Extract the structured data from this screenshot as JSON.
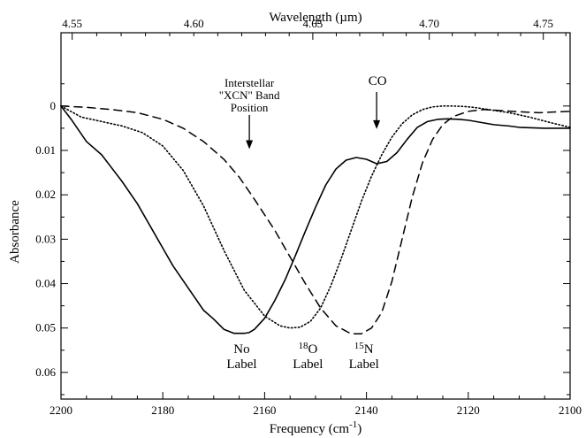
{
  "chart_data": {
    "type": "line",
    "xlabel": "Frequency (cm",
    "xlabel_sup": "-1",
    "xlabel_close": ")",
    "ylabel": "Absorbance",
    "x2label": "Wavelength (µm)",
    "xlim": [
      2200,
      2100
    ],
    "ylim": [
      0.066,
      -0.0165
    ],
    "y_inverted": true,
    "x_ticks": [
      {
        "value": 2200,
        "label": "2200"
      },
      {
        "value": 2180,
        "label": "2180"
      },
      {
        "value": 2160,
        "label": "2160"
      },
      {
        "value": 2140,
        "label": "2140"
      },
      {
        "value": 2120,
        "label": "2120"
      },
      {
        "value": 2100,
        "label": "2100"
      }
    ],
    "y_ticks": [
      {
        "value": 0,
        "label": "0"
      },
      {
        "value": 0.01,
        "label": "0.01"
      },
      {
        "value": 0.02,
        "label": "0.02"
      },
      {
        "value": 0.03,
        "label": "0.03"
      },
      {
        "value": 0.04,
        "label": "0.04"
      },
      {
        "value": 0.05,
        "label": "0.05"
      },
      {
        "value": 0.06,
        "label": "0.06"
      }
    ],
    "x2_ticks": [
      {
        "wavelength": 4.55,
        "label": "4.55"
      },
      {
        "wavelength": 4.6,
        "label": "4.60"
      },
      {
        "wavelength": 4.65,
        "label": "4.65"
      },
      {
        "wavelength": 4.7,
        "label": "4.70"
      },
      {
        "wavelength": 4.75,
        "label": "4.75"
      }
    ],
    "grid": false,
    "series": [
      {
        "style": "solid",
        "x": [
          2200,
          2198,
          2195,
          2192,
          2190,
          2188,
          2185,
          2182,
          2180,
          2178,
          2175,
          2172,
          2170,
          2168,
          2166,
          2164,
          2163,
          2162,
          2160,
          2158,
          2156,
          2154,
          2152,
          2150,
          2148,
          2146,
          2144,
          2142,
          2140,
          2138,
          2136,
          2134,
          2132,
          2130,
          2128,
          2126,
          2124,
          2122,
          2120,
          2118,
          2115,
          2112,
          2110,
          2105,
          2100
        ],
        "y": [
          0.0,
          0.003,
          0.008,
          0.011,
          0.014,
          0.017,
          0.022,
          0.028,
          0.032,
          0.036,
          0.041,
          0.046,
          0.048,
          0.0503,
          0.0512,
          0.0512,
          0.051,
          0.0503,
          0.0478,
          0.0438,
          0.0392,
          0.0338,
          0.0282,
          0.0228,
          0.0178,
          0.0142,
          0.0122,
          0.0116,
          0.012,
          0.013,
          0.0125,
          0.0105,
          0.0075,
          0.0048,
          0.0035,
          0.003,
          0.0029,
          0.003,
          0.0032,
          0.0036,
          0.0042,
          0.0045,
          0.0048,
          0.005,
          0.005
        ]
      },
      {
        "style": "dotted",
        "x": [
          2200,
          2196,
          2192,
          2188,
          2184,
          2180,
          2176,
          2172,
          2168,
          2164,
          2160,
          2157,
          2155,
          2153,
          2151,
          2149,
          2147,
          2145,
          2143,
          2141,
          2139,
          2137,
          2135,
          2133,
          2131,
          2129,
          2127,
          2125,
          2123,
          2121,
          2119,
          2116,
          2112,
          2108,
          2104,
          2100
        ],
        "y": [
          0.0,
          0.0025,
          0.0035,
          0.0045,
          0.006,
          0.009,
          0.0145,
          0.0225,
          0.0325,
          0.0415,
          0.0473,
          0.0495,
          0.05,
          0.0498,
          0.0485,
          0.0455,
          0.0405,
          0.0345,
          0.028,
          0.0215,
          0.0158,
          0.011,
          0.007,
          0.004,
          0.002,
          0.0008,
          0.0002,
          0.0,
          0.0,
          0.0001,
          0.0003,
          0.0008,
          0.0015,
          0.0025,
          0.0037,
          0.0048
        ]
      },
      {
        "style": "dashed",
        "x": [
          2200,
          2195,
          2190,
          2185,
          2180,
          2176,
          2172,
          2168,
          2165,
          2162,
          2158,
          2155,
          2152,
          2149,
          2146,
          2143,
          2141,
          2139,
          2137,
          2135,
          2133,
          2131,
          2129,
          2127,
          2125,
          2123,
          2120,
          2117,
          2114,
          2110,
          2106,
          2102,
          2100
        ],
        "y": [
          0.0,
          0.0003,
          0.0008,
          0.0015,
          0.003,
          0.005,
          0.008,
          0.012,
          0.016,
          0.021,
          0.028,
          0.034,
          0.04,
          0.0455,
          0.0495,
          0.0513,
          0.0513,
          0.05,
          0.0465,
          0.0395,
          0.03,
          0.0205,
          0.0128,
          0.0075,
          0.0042,
          0.0024,
          0.0012,
          0.0008,
          0.001,
          0.0013,
          0.0015,
          0.0013,
          0.0012
        ]
      }
    ],
    "annotations": [
      {
        "id": "xcn",
        "lines": [
          "Interstellar",
          "\"XCN\" Band",
          "Position"
        ],
        "x": 2163,
        "arrow_tip_y": 0.0097
      },
      {
        "id": "co",
        "text": "CO",
        "x": 2138,
        "arrow_tip_y": 0.0052
      },
      {
        "id": "no-label",
        "lines": [
          "No",
          "Label"
        ],
        "x": 2164.5
      },
      {
        "id": "o18-label",
        "sup": "18",
        "base": "O",
        "line2": "Label",
        "x": 2151.5
      },
      {
        "id": "n15-label",
        "sup": "15",
        "base": "N",
        "line2": "Label",
        "x": 2140.5
      }
    ]
  }
}
